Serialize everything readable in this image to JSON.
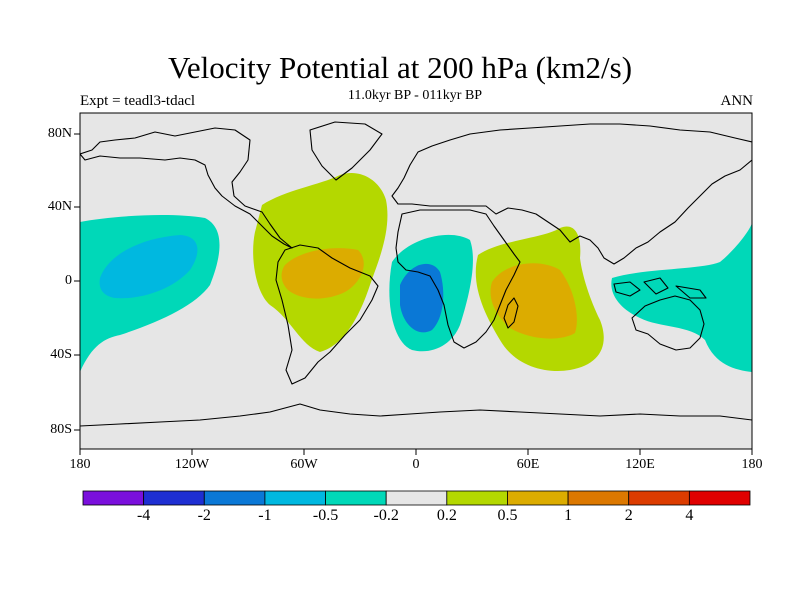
{
  "title": "Velocity Potential at 200 hPa (km2/s)",
  "subtitle": "11.0kyr BP - 011kyr BP",
  "left_label": "Expt = teadl3-tdacl",
  "right_label": "ANN",
  "y_ticks": [
    "80N",
    "40N",
    "0",
    "40S",
    "80S"
  ],
  "x_ticks": [
    "180",
    "120W",
    "60W",
    "0",
    "60E",
    "120E",
    "180"
  ],
  "colorbar": {
    "labels": [
      "-4",
      "-2",
      "-1",
      "-0.5",
      "-0.2",
      "0.2",
      "0.5",
      "1",
      "2",
      "4"
    ],
    "colors": [
      "#7A0FDC",
      "#1E2FD2",
      "#0A78D6",
      "#00B8E0",
      "#00D8B8",
      "#E6E6E6",
      "#B4D800",
      "#DCAC00",
      "#DC7800",
      "#DC3C00",
      "#E00000"
    ]
  },
  "map": {
    "background_color": "#E6E6E6",
    "coastline_color": "#000000",
    "regions": [
      {
        "name": "north-pacific-negative-anomaly",
        "level": "-0.2"
      },
      {
        "name": "east-pacific-negative-core",
        "level": "-0.5"
      },
      {
        "name": "americas-atlantic-positive-anomaly",
        "level": "0.2"
      },
      {
        "name": "south-america-positive-core",
        "level": "0.5"
      },
      {
        "name": "gulf-of-guinea-negative-anomaly",
        "level": "-0.2"
      },
      {
        "name": "gulf-of-guinea-core",
        "level": "-1"
      },
      {
        "name": "indian-ocean-positive-anomaly",
        "level": "0.2"
      },
      {
        "name": "indian-ocean-positive-core",
        "level": "0.5"
      },
      {
        "name": "maritime-continent-negative-anomaly",
        "level": "-0.2"
      }
    ]
  }
}
